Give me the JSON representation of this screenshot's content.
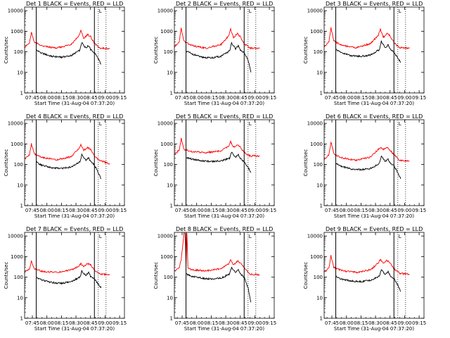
{
  "time_ticks": [
    "07:45",
    "08:00",
    "08:15",
    "08:30",
    "08:45",
    "09:00",
    "09:15"
  ],
  "y_ticks": [
    "1",
    "10",
    "100",
    "1000",
    "10000"
  ],
  "colors": {
    "events": "#000000",
    "lld": "#ff0000",
    "axes": "#000000"
  },
  "chart_data": [
    {
      "type": "line",
      "title": "Det 1  BLACK = Events, RED = LLD",
      "xlabel": "Start Time (31-Aug-04 07:37:20)",
      "ylabel": "Counts/sec",
      "y_scale": "log",
      "ylim": [
        1,
        15000
      ],
      "xlim": [
        "07:37",
        "09:20"
      ],
      "markers": {
        "solid": [
          "07:49",
          "08:49"
        ],
        "dotted": [
          "08:53",
          "09:01"
        ],
        "flag": "L"
      },
      "grid": false,
      "series": [
        {
          "name": "Events",
          "color": "#000000",
          "x": [
            "07:49",
            "07:55",
            "08:05",
            "08:15",
            "08:25",
            "08:34",
            "08:36",
            "08:40",
            "08:43",
            "08:45",
            "08:49",
            "08:53",
            "08:56"
          ],
          "y": [
            120,
            85,
            60,
            55,
            65,
            120,
            300,
            150,
            200,
            130,
            90,
            45,
            25
          ]
        },
        {
          "name": "LLD",
          "color": "#ff0000",
          "x": [
            "07:37",
            "07:42",
            "07:44",
            "07:47",
            "07:55",
            "08:10",
            "08:25",
            "08:33",
            "08:35",
            "08:38",
            "08:42",
            "08:45",
            "08:49",
            "08:55",
            "09:05"
          ],
          "y": [
            170,
            260,
            900,
            300,
            190,
            150,
            230,
            600,
            1100,
            450,
            700,
            550,
            250,
            150,
            145
          ]
        }
      ]
    },
    {
      "type": "line",
      "title": "Det 2  BLACK = Events, RED = LLD",
      "xlabel": "Start Time (31-Aug-04 07:37:20)",
      "ylabel": "Counts/sec",
      "y_scale": "log",
      "ylim": [
        1,
        15000
      ],
      "xlim": [
        "07:37",
        "09:20"
      ],
      "markers": {
        "solid": [
          "07:49",
          "08:49"
        ],
        "dotted": [
          "08:53",
          "09:01"
        ],
        "flag": "L"
      },
      "grid": false,
      "series": [
        {
          "name": "Events",
          "color": "#000000",
          "x": [
            "07:49",
            "07:55",
            "08:05",
            "08:15",
            "08:25",
            "08:34",
            "08:36",
            "08:40",
            "08:43",
            "08:45",
            "08:49",
            "08:53",
            "08:56"
          ],
          "y": [
            110,
            80,
            55,
            50,
            60,
            110,
            280,
            140,
            190,
            120,
            90,
            40,
            10
          ]
        },
        {
          "name": "LLD",
          "color": "#ff0000",
          "x": [
            "07:37",
            "07:42",
            "07:44",
            "07:47",
            "07:55",
            "08:10",
            "08:25",
            "08:33",
            "08:35",
            "08:38",
            "08:42",
            "08:45",
            "08:49",
            "08:55",
            "09:05"
          ],
          "y": [
            170,
            320,
            1400,
            320,
            200,
            150,
            220,
            600,
            1300,
            500,
            750,
            550,
            250,
            150,
            145
          ]
        }
      ]
    },
    {
      "type": "line",
      "title": "Det 3  BLACK = Events, RED = LLD",
      "xlabel": "Start Time (31-Aug-04 07:37:20)",
      "ylabel": "Counts/sec",
      "y_scale": "log",
      "ylim": [
        1,
        15000
      ],
      "xlim": [
        "07:37",
        "09:20"
      ],
      "markers": {
        "solid": [
          "07:49",
          "08:49"
        ],
        "dotted": [
          "08:53",
          "09:01"
        ],
        "flag": "L"
      },
      "grid": false,
      "series": [
        {
          "name": "Events",
          "color": "#000000",
          "x": [
            "07:49",
            "07:55",
            "08:05",
            "08:15",
            "08:25",
            "08:34",
            "08:36",
            "08:40",
            "08:43",
            "08:45",
            "08:49",
            "08:53",
            "08:56"
          ],
          "y": [
            130,
            90,
            65,
            60,
            70,
            130,
            330,
            160,
            210,
            140,
            95,
            50,
            30
          ]
        },
        {
          "name": "LLD",
          "color": "#ff0000",
          "x": [
            "07:37",
            "07:42",
            "07:44",
            "07:47",
            "07:55",
            "08:10",
            "08:25",
            "08:33",
            "08:35",
            "08:38",
            "08:42",
            "08:45",
            "08:49",
            "08:55",
            "09:05"
          ],
          "y": [
            170,
            330,
            1500,
            340,
            210,
            160,
            250,
            650,
            1300,
            500,
            800,
            600,
            280,
            160,
            150
          ]
        }
      ]
    },
    {
      "type": "line",
      "title": "Det 4  BLACK = Events, RED = LLD",
      "xlabel": "Start Time (31-Aug-04 07:37:20)",
      "ylabel": "Counts/sec",
      "y_scale": "log",
      "ylim": [
        1,
        15000
      ],
      "xlim": [
        "07:37",
        "09:20"
      ],
      "markers": {
        "solid": [
          "07:49",
          "08:49"
        ],
        "dotted": [
          "08:53",
          "09:01"
        ],
        "flag": "L"
      },
      "grid": false,
      "series": [
        {
          "name": "Events",
          "color": "#000000",
          "x": [
            "07:49",
            "07:55",
            "08:05",
            "08:15",
            "08:25",
            "08:34",
            "08:36",
            "08:40",
            "08:43",
            "08:45",
            "08:49",
            "08:53",
            "08:56"
          ],
          "y": [
            130,
            90,
            70,
            65,
            75,
            130,
            320,
            160,
            210,
            140,
            95,
            40,
            20
          ]
        },
        {
          "name": "LLD",
          "color": "#ff0000",
          "x": [
            "07:37",
            "07:42",
            "07:44",
            "07:47",
            "07:55",
            "08:10",
            "08:25",
            "08:33",
            "08:35",
            "08:38",
            "08:42",
            "08:45",
            "08:49",
            "08:55",
            "09:05"
          ],
          "y": [
            180,
            300,
            1000,
            330,
            220,
            170,
            240,
            600,
            900,
            500,
            650,
            550,
            260,
            150,
            110
          ]
        }
      ]
    },
    {
      "type": "line",
      "title": "Det 5  BLACK = Events, RED = LLD",
      "xlabel": "Start Time (31-Aug-04 07:37:20)",
      "ylabel": "Counts/sec",
      "y_scale": "log",
      "ylim": [
        1,
        15000
      ],
      "xlim": [
        "07:37",
        "09:20"
      ],
      "markers": {
        "solid": [
          "07:49",
          "08:49"
        ],
        "dotted": [
          "08:53",
          "09:01"
        ],
        "flag": "L"
      },
      "grid": false,
      "series": [
        {
          "name": "Events",
          "color": "#000000",
          "x": [
            "07:49",
            "07:55",
            "08:05",
            "08:15",
            "08:25",
            "08:34",
            "08:36",
            "08:40",
            "08:43",
            "08:45",
            "08:49",
            "08:53",
            "08:56"
          ],
          "y": [
            220,
            180,
            150,
            140,
            150,
            200,
            400,
            230,
            300,
            200,
            130,
            70,
            40
          ]
        },
        {
          "name": "LLD",
          "color": "#ff0000",
          "x": [
            "07:37",
            "07:42",
            "07:44",
            "07:47",
            "07:55",
            "08:10",
            "08:25",
            "08:33",
            "08:35",
            "08:38",
            "08:42",
            "08:45",
            "08:49",
            "08:55",
            "09:05"
          ],
          "y": [
            300,
            500,
            1800,
            550,
            420,
            380,
            450,
            800,
            1300,
            700,
            900,
            700,
            380,
            260,
            260
          ]
        }
      ]
    },
    {
      "type": "line",
      "title": "Det 6  BLACK = Events, RED = LLD",
      "xlabel": "Start Time (31-Aug-04 07:37:20)",
      "ylabel": "Counts/sec",
      "y_scale": "log",
      "ylim": [
        1,
        15000
      ],
      "xlim": [
        "07:37",
        "09:20"
      ],
      "markers": {
        "solid": [
          "07:49",
          "08:49"
        ],
        "dotted": [
          "08:53",
          "09:01"
        ],
        "flag": "L"
      },
      "grid": false,
      "series": [
        {
          "name": "Events",
          "color": "#000000",
          "x": [
            "07:49",
            "07:55",
            "08:05",
            "08:15",
            "08:25",
            "08:34",
            "08:36",
            "08:40",
            "08:43",
            "08:45",
            "08:49",
            "08:53",
            "08:56"
          ],
          "y": [
            110,
            80,
            60,
            55,
            65,
            110,
            260,
            140,
            180,
            120,
            85,
            40,
            20
          ]
        },
        {
          "name": "LLD",
          "color": "#ff0000",
          "x": [
            "07:37",
            "07:42",
            "07:44",
            "07:47",
            "07:55",
            "08:10",
            "08:25",
            "08:33",
            "08:35",
            "08:38",
            "08:42",
            "08:45",
            "08:49",
            "08:55",
            "09:05"
          ],
          "y": [
            180,
            300,
            1300,
            330,
            210,
            160,
            230,
            550,
            650,
            550,
            650,
            500,
            300,
            160,
            150
          ]
        }
      ]
    },
    {
      "type": "line",
      "title": "Det 7  BLACK = Events, RED = LLD",
      "xlabel": "Start Time (31-Aug-04 07:37:20)",
      "ylabel": "Counts/sec",
      "y_scale": "log",
      "ylim": [
        1,
        15000
      ],
      "xlim": [
        "07:37",
        "09:20"
      ],
      "markers": {
        "solid": [
          "07:49",
          "08:49"
        ],
        "dotted": [
          "08:53",
          "09:01"
        ],
        "flag": "L"
      },
      "grid": false,
      "series": [
        {
          "name": "Events",
          "color": "#000000",
          "x": [
            "07:49",
            "07:55",
            "08:05",
            "08:15",
            "08:25",
            "08:34",
            "08:36",
            "08:40",
            "08:43",
            "08:45",
            "08:49",
            "08:53",
            "08:56"
          ],
          "y": [
            100,
            70,
            55,
            50,
            60,
            100,
            200,
            120,
            170,
            110,
            80,
            45,
            30
          ]
        },
        {
          "name": "LLD",
          "color": "#ff0000",
          "x": [
            "07:37",
            "07:42",
            "07:44",
            "07:47",
            "07:55",
            "08:10",
            "08:25",
            "08:33",
            "08:35",
            "08:38",
            "08:42",
            "08:45",
            "08:49",
            "08:55",
            "09:05"
          ],
          "y": [
            170,
            250,
            600,
            260,
            190,
            170,
            220,
            350,
            450,
            320,
            450,
            400,
            220,
            140,
            130
          ]
        }
      ]
    },
    {
      "type": "line",
      "title": "Det 8  BLACK = Events, RED = LLD",
      "xlabel": "Start Time (31-Aug-04 07:37:20)",
      "ylabel": "Counts/sec",
      "y_scale": "log",
      "ylim": [
        1,
        15000
      ],
      "xlim": [
        "07:37",
        "09:20"
      ],
      "markers": {
        "solid": [
          "07:49",
          "08:49"
        ],
        "dotted": [
          "08:53",
          "09:01"
        ],
        "flag": "L"
      },
      "grid": false,
      "series": [
        {
          "name": "Events",
          "color": "#000000",
          "x": [
            "07:49",
            "07:55",
            "08:05",
            "08:15",
            "08:25",
            "08:34",
            "08:36",
            "08:40",
            "08:43",
            "08:45",
            "08:49",
            "08:53",
            "08:56"
          ],
          "y": [
            140,
            110,
            90,
            80,
            90,
            140,
            300,
            170,
            230,
            150,
            100,
            30,
            6
          ]
        },
        {
          "name": "LLD",
          "color": "#ff0000",
          "x": [
            "07:37",
            "07:42",
            "07:44",
            "07:47",
            "07:48",
            "07:49",
            "07:50",
            "07:51",
            "07:55",
            "08:10",
            "08:25",
            "08:33",
            "08:35",
            "08:38",
            "08:42",
            "08:45",
            "08:49",
            "08:55",
            "09:05"
          ],
          "y": [
            200,
            300,
            700,
            14000,
            14000,
            300,
            14000,
            280,
            230,
            200,
            260,
            450,
            700,
            400,
            600,
            500,
            280,
            140,
            130
          ]
        }
      ]
    },
    {
      "type": "line",
      "title": "Det 9  BLACK = Events, RED = LLD",
      "xlabel": "Start Time (31-Aug-04 07:37:20)",
      "ylabel": "Counts/sec",
      "y_scale": "log",
      "ylim": [
        1,
        15000
      ],
      "xlim": [
        "07:37",
        "09:20"
      ],
      "markers": {
        "solid": [
          "07:49",
          "08:49"
        ],
        "dotted": [
          "08:53",
          "09:01"
        ],
        "flag": "L"
      },
      "grid": false,
      "series": [
        {
          "name": "Events",
          "color": "#000000",
          "x": [
            "07:49",
            "07:55",
            "08:05",
            "08:15",
            "08:25",
            "08:34",
            "08:36",
            "08:40",
            "08:43",
            "08:45",
            "08:49",
            "08:53",
            "08:56"
          ],
          "y": [
            110,
            80,
            65,
            60,
            70,
            110,
            230,
            130,
            180,
            120,
            85,
            40,
            20
          ]
        },
        {
          "name": "LLD",
          "color": "#ff0000",
          "x": [
            "07:37",
            "07:42",
            "07:44",
            "07:47",
            "07:55",
            "08:10",
            "08:25",
            "08:33",
            "08:35",
            "08:38",
            "08:42",
            "08:45",
            "08:49",
            "08:55",
            "09:05"
          ],
          "y": [
            170,
            280,
            1100,
            300,
            210,
            170,
            230,
            500,
            700,
            500,
            650,
            500,
            260,
            150,
            140
          ]
        }
      ]
    }
  ]
}
